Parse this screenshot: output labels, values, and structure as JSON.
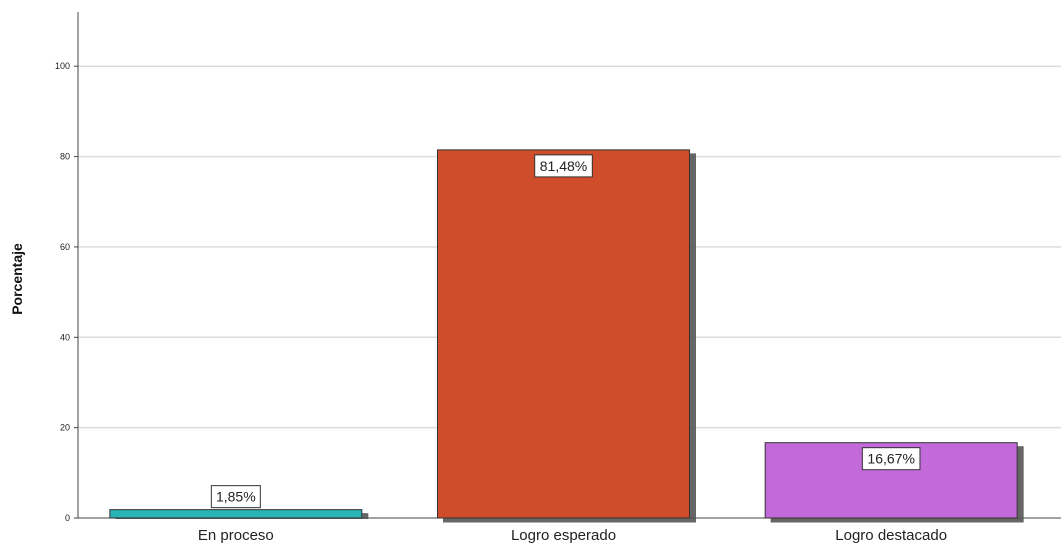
{
  "chart_data": {
    "type": "bar",
    "categories": [
      "En proceso",
      "Logro esperado",
      "Logro destacado"
    ],
    "values": [
      1.85,
      81.48,
      16.67
    ],
    "data_labels": [
      "1,85%",
      "81,48%",
      "16,67%"
    ],
    "colors": [
      "#2bb3b5",
      "#cf4e2a",
      "#c26bd9"
    ],
    "title": "",
    "xlabel": "",
    "ylabel": "Porcentaje",
    "ylim": [
      0,
      112
    ],
    "yticks": [
      0,
      20,
      40,
      60,
      80,
      100
    ],
    "ytick_labels": [
      "0",
      "20",
      "40",
      "60",
      "80",
      "100"
    ],
    "grid": true,
    "legend": "none"
  }
}
